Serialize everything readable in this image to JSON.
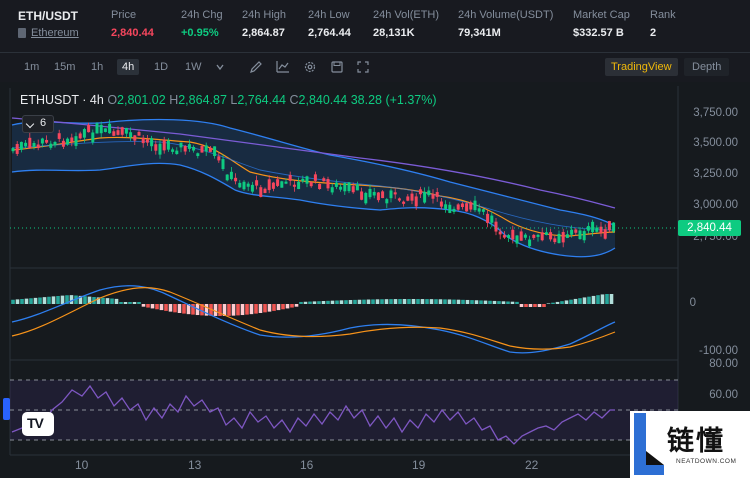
{
  "header": {
    "pair": "ETH/USDT",
    "asset_link": "Ethereum",
    "stats": [
      {
        "label": "Price",
        "value": "2,840.44",
        "color": "red"
      },
      {
        "label": "24h Chg",
        "value": "+0.95%",
        "color": "green"
      },
      {
        "label": "24h High",
        "value": "2,864.87",
        "color": ""
      },
      {
        "label": "24h Low",
        "value": "2,764.44",
        "color": ""
      },
      {
        "label": "24h Vol(ETH)",
        "value": "28,131K",
        "color": ""
      },
      {
        "label": "24h Volume(USDT)",
        "value": "79,341M",
        "color": ""
      },
      {
        "label": "Market Cap",
        "value": "$332.57 B",
        "color": ""
      },
      {
        "label": "Rank",
        "value": "2",
        "color": ""
      }
    ]
  },
  "toolbar": {
    "timeframes": [
      "1m",
      "15m",
      "1h",
      "4h",
      "1D",
      "1W"
    ],
    "active_timeframe": "4h",
    "tabs": {
      "tradingview": "TradingView",
      "depth": "Depth"
    }
  },
  "chart": {
    "symbol_interval": "ETHUSDT · 4h",
    "ohlc": {
      "o": "2,801.02",
      "h": "2,864.87",
      "l": "2,764.44",
      "c": "2,840.44",
      "change": "38.28 (+1.37%)"
    },
    "indicators_count": "6",
    "price_axis": [
      "3,750.00",
      "3,500.00",
      "3,250.00",
      "3,000.00",
      "2,750.00"
    ],
    "last_price_tag": "2,840.44",
    "macd_axis": [
      "0",
      "-100.00"
    ],
    "rsi_axis": [
      "80.00",
      "60.00"
    ],
    "x_axis": [
      "10",
      "13",
      "16",
      "19",
      "22"
    ],
    "colors": {
      "up": "#0ecb81",
      "down": "#f6465d",
      "band": "#2e7ff0",
      "ma": "#f7931a",
      "ma_long": "#7b5cd6",
      "rsi": "#7e57c2"
    }
  },
  "watermark": {
    "cn": "链懂",
    "en": "NEATDOWN.COM"
  }
}
